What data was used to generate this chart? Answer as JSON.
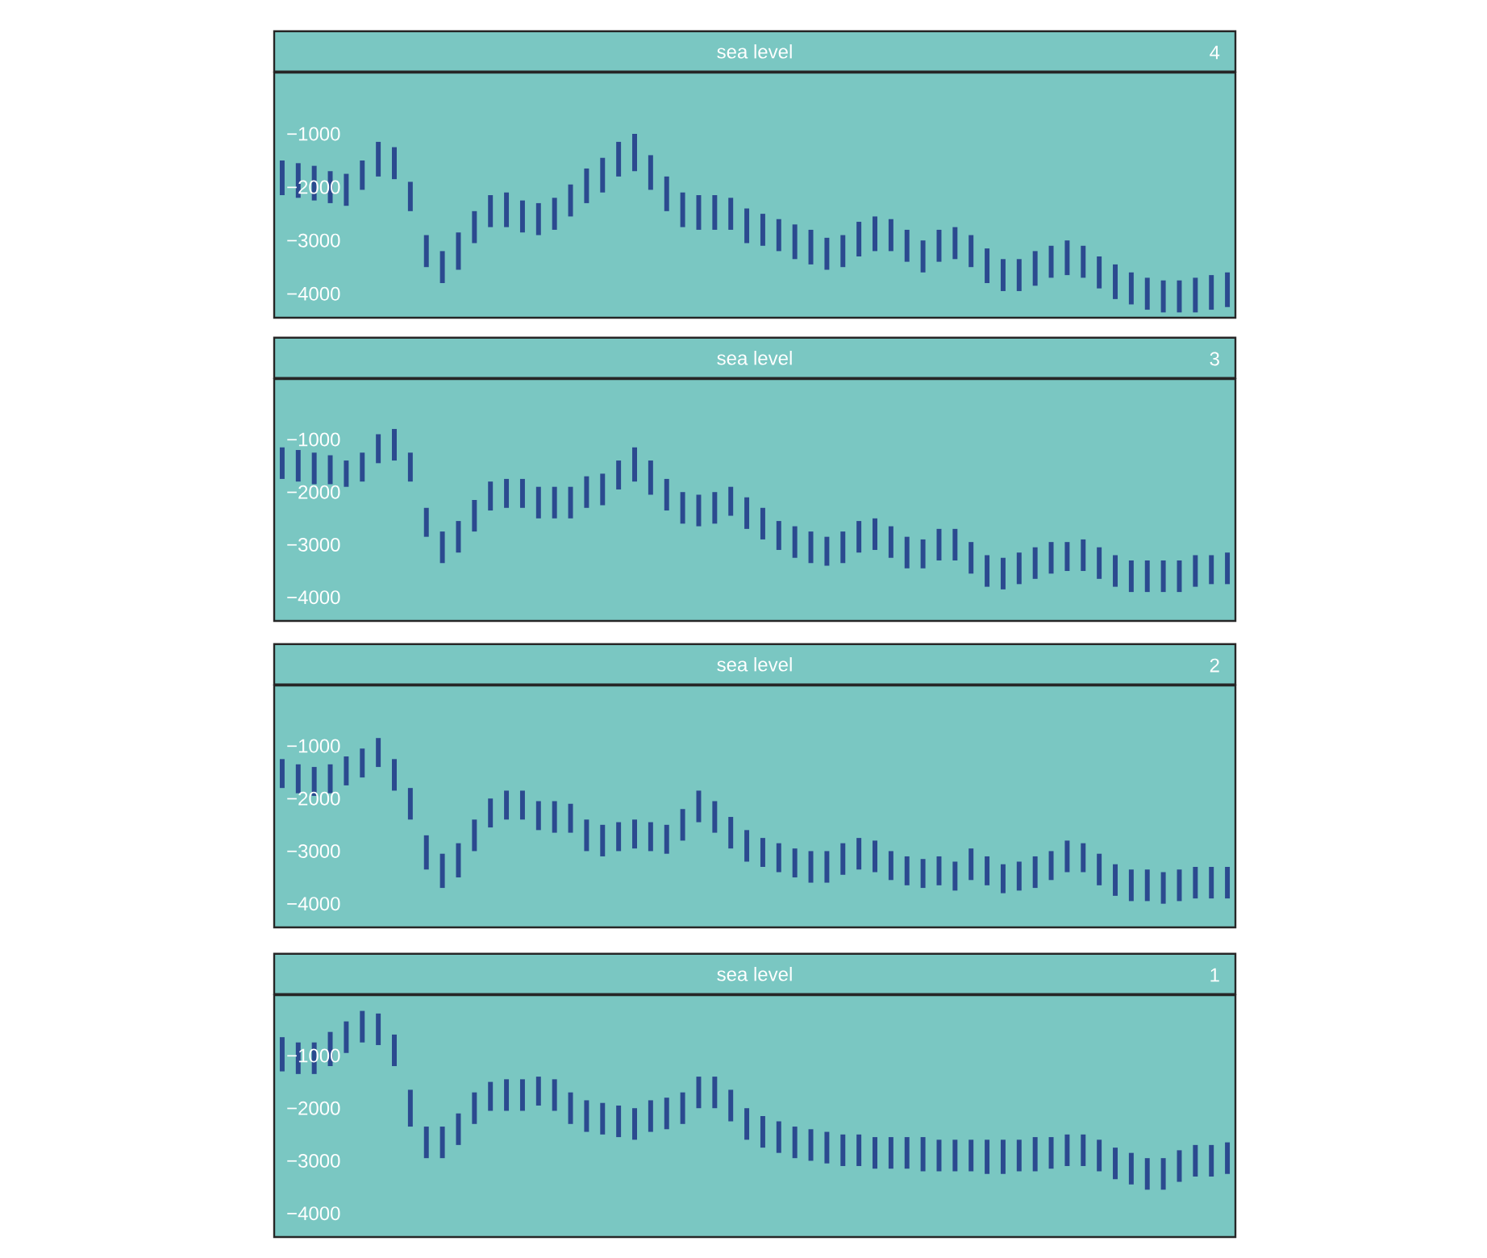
{
  "chart_data": [
    {
      "type": "bar",
      "title": "sea level",
      "annotations": [
        "4"
      ],
      "color": "#2b4a8f",
      "tick_labels": "y",
      "categories": [
        null,
        null,
        null,
        null,
        null,
        null,
        null,
        null,
        null,
        null,
        null,
        null,
        null,
        null,
        null,
        null,
        null,
        null,
        null,
        null,
        null,
        null,
        null,
        null,
        null,
        null,
        null,
        null,
        null,
        null,
        null,
        null,
        null,
        null,
        null,
        null,
        null,
        null,
        null,
        null,
        null,
        null,
        null,
        null,
        null,
        null,
        null,
        null,
        null,
        null,
        null,
        null,
        null,
        null,
        null,
        null,
        null,
        null,
        null,
        null
      ],
      "base": [
        -2150,
        -2200,
        -2250,
        -2300,
        -2350,
        -2050,
        -1800,
        -1850,
        -2450,
        -3500,
        -3800,
        -3550,
        -3050,
        -2750,
        -2750,
        -2850,
        -2900,
        -2800,
        -2550,
        -2300,
        -2100,
        -1800,
        -1700,
        -2050,
        -2450,
        -2750,
        -2800,
        -2800,
        -2800,
        -3050,
        -3100,
        -3200,
        -3350,
        -3450,
        -3550,
        -3500,
        -3300,
        -3200,
        -3200,
        -3400,
        -3600,
        -3400,
        -3350,
        -3500,
        -3800,
        -3950,
        -3950,
        -3850,
        -3700,
        -3650,
        -3700,
        -3900,
        -4100,
        -4200,
        -4300,
        -4350,
        -4350,
        -4350,
        -4300,
        -4250
      ],
      "values": [
        650,
        650,
        650,
        600,
        600,
        550,
        650,
        600,
        550,
        600,
        600,
        700,
        600,
        600,
        650,
        600,
        600,
        600,
        600,
        650,
        650,
        650,
        700,
        650,
        650,
        650,
        650,
        650,
        600,
        650,
        600,
        600,
        650,
        650,
        600,
        600,
        650,
        650,
        600,
        600,
        600,
        600,
        600,
        600,
        650,
        600,
        600,
        650,
        600,
        650,
        600,
        600,
        650,
        600,
        600,
        600,
        600,
        650,
        650,
        650
      ],
      "ylim": [
        -4450,
        150
      ],
      "yticks": [
        {
          "value": -1000,
          "label": "−1000"
        },
        {
          "value": -2000,
          "label": "−2000"
        },
        {
          "value": -3000,
          "label": "−3000"
        },
        {
          "value": -4000,
          "label": "−4000"
        }
      ]
    },
    {
      "type": "bar",
      "title": "sea level",
      "annotations": [
        "3"
      ],
      "color": "#2b4a8f",
      "tick_labels": "y",
      "categories": [
        null,
        null,
        null,
        null,
        null,
        null,
        null,
        null,
        null,
        null,
        null,
        null,
        null,
        null,
        null,
        null,
        null,
        null,
        null,
        null,
        null,
        null,
        null,
        null,
        null,
        null,
        null,
        null,
        null,
        null,
        null,
        null,
        null,
        null,
        null,
        null,
        null,
        null,
        null,
        null,
        null,
        null,
        null,
        null,
        null,
        null,
        null,
        null,
        null,
        null,
        null,
        null,
        null,
        null,
        null,
        null,
        null,
        null,
        null,
        null
      ],
      "base": [
        -1750,
        -1800,
        -1850,
        -1850,
        -1900,
        -1800,
        -1450,
        -1400,
        -1800,
        -2850,
        -3350,
        -3150,
        -2750,
        -2350,
        -2300,
        -2300,
        -2500,
        -2500,
        -2500,
        -2300,
        -2250,
        -1950,
        -1800,
        -2050,
        -2350,
        -2600,
        -2650,
        -2600,
        -2450,
        -2700,
        -2900,
        -3100,
        -3250,
        -3350,
        -3400,
        -3350,
        -3150,
        -3100,
        -3250,
        -3450,
        -3450,
        -3300,
        -3300,
        -3550,
        -3800,
        -3850,
        -3750,
        -3650,
        -3550,
        -3500,
        -3500,
        -3650,
        -3800,
        -3900,
        -3900,
        -3900,
        -3900,
        -3800,
        -3750,
        -3750
      ],
      "values": [
        600,
        600,
        600,
        550,
        500,
        550,
        550,
        600,
        550,
        550,
        600,
        600,
        600,
        550,
        550,
        550,
        600,
        600,
        600,
        600,
        600,
        550,
        650,
        650,
        600,
        600,
        600,
        600,
        550,
        600,
        600,
        550,
        600,
        600,
        550,
        600,
        600,
        600,
        600,
        600,
        550,
        600,
        600,
        600,
        600,
        600,
        600,
        600,
        600,
        550,
        600,
        600,
        600,
        600,
        600,
        600,
        600,
        600,
        550,
        600
      ],
      "ylim": [
        -4450,
        150
      ],
      "yticks": [
        {
          "value": -1000,
          "label": "−1000"
        },
        {
          "value": -2000,
          "label": "−2000"
        },
        {
          "value": -3000,
          "label": "−3000"
        },
        {
          "value": -4000,
          "label": "−4000"
        }
      ]
    },
    {
      "type": "bar",
      "title": "sea level",
      "annotations": [
        "2"
      ],
      "color": "#2b4a8f",
      "tick_labels": "y",
      "categories": [
        null,
        null,
        null,
        null,
        null,
        null,
        null,
        null,
        null,
        null,
        null,
        null,
        null,
        null,
        null,
        null,
        null,
        null,
        null,
        null,
        null,
        null,
        null,
        null,
        null,
        null,
        null,
        null,
        null,
        null,
        null,
        null,
        null,
        null,
        null,
        null,
        null,
        null,
        null,
        null,
        null,
        null,
        null,
        null,
        null,
        null,
        null,
        null,
        null,
        null,
        null,
        null,
        null,
        null,
        null,
        null,
        null,
        null,
        null,
        null
      ],
      "base": [
        -1800,
        -1900,
        -1950,
        -1900,
        -1750,
        -1600,
        -1400,
        -1850,
        -2400,
        -3350,
        -3700,
        -3500,
        -3000,
        -2550,
        -2400,
        -2400,
        -2600,
        -2650,
        -2650,
        -3000,
        -3100,
        -3000,
        -2950,
        -3000,
        -3050,
        -2800,
        -2450,
        -2650,
        -2950,
        -3200,
        -3300,
        -3400,
        -3500,
        -3600,
        -3600,
        -3450,
        -3350,
        -3400,
        -3550,
        -3650,
        -3700,
        -3650,
        -3750,
        -3550,
        -3650,
        -3800,
        -3750,
        -3700,
        -3550,
        -3400,
        -3400,
        -3650,
        -3850,
        -3950,
        -3950,
        -4000,
        -3950,
        -3900,
        -3900,
        -3900
      ],
      "values": [
        550,
        550,
        550,
        550,
        550,
        550,
        550,
        600,
        600,
        650,
        650,
        650,
        600,
        550,
        550,
        550,
        550,
        600,
        550,
        600,
        600,
        550,
        550,
        550,
        550,
        600,
        600,
        600,
        600,
        600,
        550,
        550,
        550,
        600,
        600,
        600,
        600,
        600,
        550,
        550,
        550,
        550,
        550,
        600,
        550,
        550,
        550,
        600,
        550,
        600,
        550,
        600,
        600,
        600,
        600,
        600,
        600,
        600,
        600,
        600
      ],
      "ylim": [
        -4450,
        150
      ],
      "yticks": [
        {
          "value": -1000,
          "label": "−1000"
        },
        {
          "value": -2000,
          "label": "−2000"
        },
        {
          "value": -3000,
          "label": "−3000"
        },
        {
          "value": -4000,
          "label": "−4000"
        }
      ]
    },
    {
      "type": "bar",
      "title": "sea level",
      "annotations": [
        "1"
      ],
      "color": "#2b4a8f",
      "tick_labels": "y",
      "categories": [
        null,
        null,
        null,
        null,
        null,
        null,
        null,
        null,
        null,
        null,
        null,
        null,
        null,
        null,
        null,
        null,
        null,
        null,
        null,
        null,
        null,
        null,
        null,
        null,
        null,
        null,
        null,
        null,
        null,
        null,
        null,
        null,
        null,
        null,
        null,
        null,
        null,
        null,
        null,
        null,
        null,
        null,
        null,
        null,
        null,
        null,
        null,
        null,
        null,
        null,
        null,
        null,
        null,
        null,
        null,
        null,
        null,
        null,
        null,
        null
      ],
      "base": [
        -1300,
        -1350,
        -1350,
        -1200,
        -950,
        -750,
        -800,
        -1200,
        -2350,
        -2950,
        -2950,
        -2700,
        -2300,
        -2050,
        -2050,
        -2050,
        -1950,
        -2050,
        -2300,
        -2450,
        -2500,
        -2550,
        -2600,
        -2450,
        -2400,
        -2300,
        -2000,
        -2000,
        -2250,
        -2600,
        -2750,
        -2850,
        -2950,
        -3000,
        -3050,
        -3100,
        -3100,
        -3150,
        -3150,
        -3150,
        -3200,
        -3200,
        -3200,
        -3200,
        -3250,
        -3250,
        -3200,
        -3200,
        -3150,
        -3100,
        -3100,
        -3200,
        -3350,
        -3450,
        -3550,
        -3550,
        -3400,
        -3300,
        -3300,
        -3250
      ],
      "values": [
        650,
        600,
        600,
        650,
        600,
        600,
        600,
        600,
        700,
        600,
        600,
        600,
        600,
        550,
        600,
        600,
        550,
        600,
        600,
        600,
        600,
        600,
        600,
        600,
        600,
        600,
        600,
        600,
        600,
        600,
        600,
        600,
        600,
        600,
        600,
        600,
        600,
        600,
        600,
        600,
        650,
        600,
        600,
        600,
        650,
        650,
        600,
        650,
        600,
        600,
        600,
        600,
        600,
        600,
        600,
        600,
        600,
        600,
        600,
        600
      ],
      "ylim": [
        -4450,
        150
      ],
      "yticks": [
        {
          "value": -1000,
          "label": "−1000"
        },
        {
          "value": -2000,
          "label": "−2000"
        },
        {
          "value": -3000,
          "label": "−3000"
        },
        {
          "value": -4000,
          "label": "−4000"
        }
      ]
    }
  ]
}
